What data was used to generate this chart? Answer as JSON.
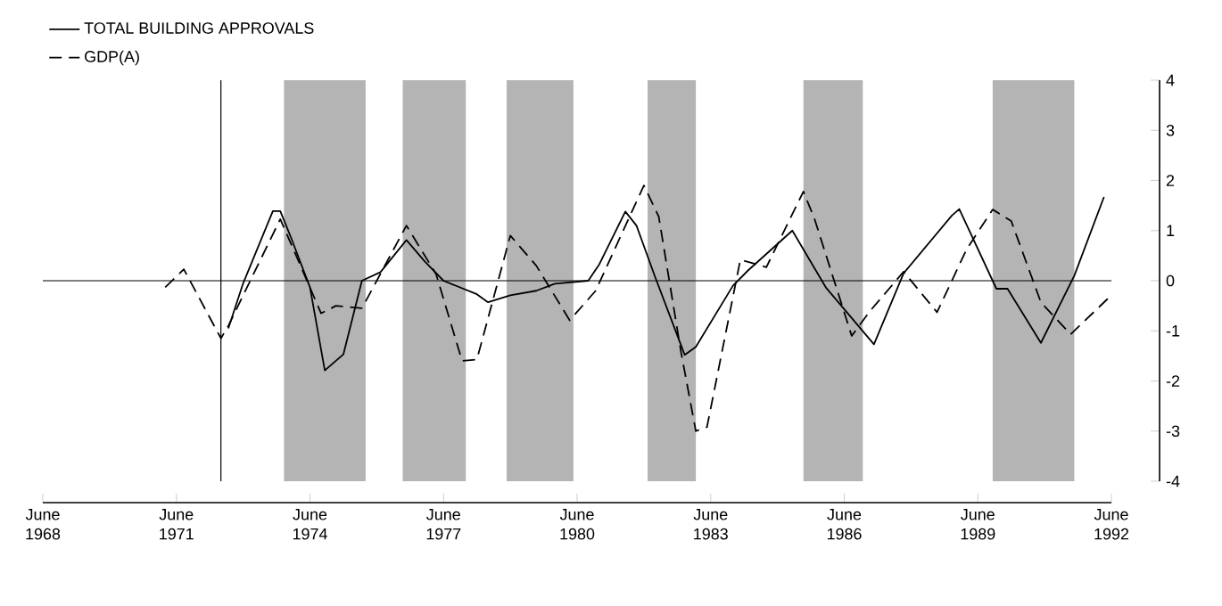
{
  "chart_data": {
    "type": "line",
    "xlim": [
      "1968-06",
      "1992-06"
    ],
    "xticks": [
      {
        "value": "1968-06",
        "label": "June 1968"
      },
      {
        "value": "1971-06",
        "label": "June 1971"
      },
      {
        "value": "1974-06",
        "label": "June 1974"
      },
      {
        "value": "1977-06",
        "label": "June 1977"
      },
      {
        "value": "1980-06",
        "label": "June 1980"
      },
      {
        "value": "1983-06",
        "label": "June 1983"
      },
      {
        "value": "1986-06",
        "label": "June 1986"
      },
      {
        "value": "1989-06",
        "label": "June 1989"
      },
      {
        "value": "1992-06",
        "label": "June 1992"
      }
    ],
    "ylim": [
      -4,
      4
    ],
    "yticks": [
      -4,
      -3,
      -2,
      -1,
      0,
      1,
      2,
      3,
      4
    ],
    "legend": "top left",
    "series": [
      {
        "name": "TOTAL BUILDING APPROVALS",
        "color": "#000000",
        "line_style": "solid",
        "x": [
          "1972-08",
          "1972-12",
          "1973-08",
          "1973-10",
          "1974-01",
          "1974-06",
          "1974-10",
          "1975-03",
          "1975-08",
          "1976-01",
          "1976-08",
          "1977-01",
          "1977-06",
          "1978-03",
          "1978-06",
          "1978-12",
          "1979-07",
          "1979-12",
          "1980-09",
          "1980-12",
          "1981-07",
          "1981-10",
          "1982-03",
          "1982-11",
          "1983-02",
          "1983-12",
          "1984-04",
          "1985-04",
          "1986-01",
          "1987-02",
          "1987-10",
          "1988-11",
          "1989-01",
          "1989-11",
          "1990-02",
          "1990-11",
          "1991-08",
          "1992-04"
        ],
        "values": [
          -0.95,
          -0.05,
          1.39,
          1.39,
          0.84,
          -0.13,
          -1.79,
          -1.47,
          0.0,
          0.17,
          0.81,
          0.38,
          0.0,
          -0.27,
          -0.43,
          -0.29,
          -0.2,
          -0.06,
          0.0,
          0.33,
          1.38,
          1.1,
          0.08,
          -1.48,
          -1.32,
          -0.1,
          0.2,
          1.0,
          -0.13,
          -1.27,
          0.15,
          1.3,
          1.43,
          -0.16,
          -0.16,
          -1.24,
          0.1,
          1.67
        ]
      },
      {
        "name": "GDP(A)",
        "color": "#000000",
        "line_style": "dashed",
        "x": [
          "1971-03",
          "1971-08",
          "1972-06",
          "1972-08",
          "1973-10",
          "1974-09",
          "1975-01",
          "1975-08",
          "1976-08",
          "1977-04",
          "1977-11",
          "1978-03",
          "1978-12",
          "1979-07",
          "1980-04",
          "1980-11",
          "1981-12",
          "1982-04",
          "1982-10",
          "1983-02",
          "1983-05",
          "1984-02",
          "1984-09",
          "1985-07",
          "1985-10",
          "1986-08",
          "1987-01",
          "1987-10",
          "1988-07",
          "1989-03",
          "1989-10",
          "1990-03",
          "1990-11",
          "1991-07",
          "1992-05"
        ],
        "values": [
          -0.13,
          0.23,
          -1.15,
          -0.9,
          1.23,
          -0.65,
          -0.5,
          -0.55,
          1.1,
          0.13,
          -1.6,
          -1.57,
          0.9,
          0.3,
          -0.79,
          -0.2,
          1.9,
          1.28,
          -1.42,
          -3.0,
          -2.92,
          0.42,
          0.27,
          1.78,
          1.23,
          -1.1,
          -0.6,
          0.18,
          -0.63,
          0.63,
          1.42,
          1.19,
          -0.43,
          -1.07,
          -0.36
        ]
      }
    ],
    "ref_lines": [
      {
        "axis": "y",
        "value": 0,
        "color": "#000000"
      },
      {
        "axis": "x",
        "value": "1972-06",
        "color": "#000000"
      }
    ],
    "bands": [
      {
        "axis": "x",
        "from": "1973-11",
        "to": "1975-09",
        "color": "#b4b4b4"
      },
      {
        "axis": "x",
        "from": "1976-07",
        "to": "1977-12",
        "color": "#b4b4b4"
      },
      {
        "axis": "x",
        "from": "1978-11",
        "to": "1980-05",
        "color": "#b4b4b4"
      },
      {
        "axis": "x",
        "from": "1982-01",
        "to": "1983-02",
        "color": "#b4b4b4"
      },
      {
        "axis": "x",
        "from": "1985-07",
        "to": "1986-11",
        "color": "#b4b4b4"
      },
      {
        "axis": "x",
        "from": "1989-10",
        "to": "1991-08",
        "color": "#b4b4b4"
      }
    ]
  }
}
